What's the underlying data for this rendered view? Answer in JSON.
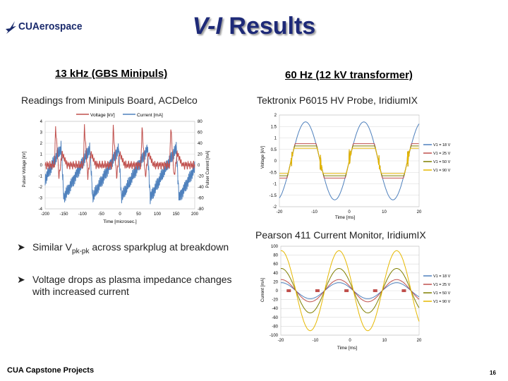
{
  "logo": {
    "text": "CUAerospace"
  },
  "title": {
    "italic": "V-I",
    "rest": " Results"
  },
  "left": {
    "heading": "13 kHz (GBS Minipuls)",
    "subtitle": "Readings from Minipuls Board, ACDelco",
    "chart": {
      "type": "line",
      "legend": [
        "Voltage [kV]",
        "Current [mA]"
      ],
      "xlabel": "Time [microsec.]",
      "ylabel": "Pulser Voltage [kV]",
      "y2label": "Pulser Current [mA]",
      "xticks": [
        "-200",
        "-150",
        "-100",
        "-50",
        "0",
        "50",
        "100",
        "150",
        "200"
      ],
      "yticks": [
        "4",
        "3",
        "2",
        "1",
        "0",
        "-1",
        "-2",
        "-3",
        "-4"
      ],
      "y2ticks": [
        "80",
        "60",
        "40",
        "20",
        "0",
        "-20",
        "-40",
        "-60",
        "-80"
      ],
      "xlim": [
        -200,
        200
      ],
      "ylim": [
        -4,
        4
      ],
      "y2lim": [
        -80,
        80
      ],
      "series": [
        {
          "name": "Voltage [kV]",
          "color": "#c0504d"
        },
        {
          "name": "Current [mA]",
          "color": "#4f81bd"
        }
      ]
    }
  },
  "right": {
    "heading": "60 Hz (12 kV transformer)",
    "subtitle1": "Tektronix P6015 HV Probe, IridiumIX",
    "subtitle2": "Pearson 411 Current Monitor, IridiumIX",
    "chart1": {
      "type": "line",
      "xlabel": "Time [ms]",
      "ylabel": "Voltage [kV]",
      "xticks": [
        "-20",
        "-10",
        "0",
        "10",
        "20"
      ],
      "yticks": [
        "2",
        "1.5",
        "1",
        "0.5",
        "0",
        "-0.5",
        "-1",
        "-1.5",
        "-2"
      ],
      "xlim": [
        -20,
        20
      ],
      "ylim": [
        -2,
        2
      ],
      "legend": [
        "V1 = 18 V",
        "V1 = 25 V",
        "V1 = 50 V",
        "V1 = 90 V"
      ],
      "colors": [
        "#4f81bd",
        "#c0504d",
        "#7f7f00",
        "#e6b800"
      ]
    },
    "chart2": {
      "type": "line",
      "xlabel": "Time [ms]",
      "ylabel": "Current [mA]",
      "xticks": [
        "-20",
        "-10",
        "0",
        "10",
        "20"
      ],
      "yticks": [
        "100",
        "80",
        "60",
        "40",
        "20",
        "0",
        "-20",
        "-40",
        "-60",
        "-80",
        "-100"
      ],
      "xlim": [
        -20,
        20
      ],
      "ylim": [
        -100,
        100
      ],
      "legend": [
        "V1 = 18 V",
        "V1 = 25 V",
        "V1 = 50 V",
        "V1 = 90 V"
      ],
      "colors": [
        "#4f81bd",
        "#c0504d",
        "#7f7f00",
        "#e6b800"
      ],
      "amplitudes_mA": [
        18,
        25,
        50,
        90
      ]
    }
  },
  "bullets": [
    {
      "pre": "Similar V",
      "sub": "pk-pk",
      "post": " across sparkplug at breakdown"
    },
    {
      "text": "Voltage drops as plasma impedance changes with increased current"
    }
  ],
  "footer": "CUA Capstone Projects",
  "page_number": "16"
}
